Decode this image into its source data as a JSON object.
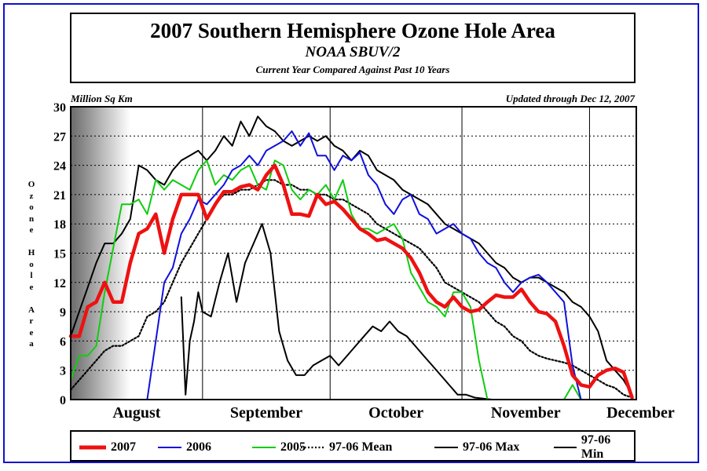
{
  "header": {
    "title": "2007 Southern Hemisphere Ozone Hole Area",
    "subtitle": "NOAA SBUV/2",
    "subtitle2": "Current Year Compared Against Past 10 Years"
  },
  "chart_data": {
    "type": "line",
    "ylabel": "Ozone Hole Area",
    "yunit": "Million Sq Km",
    "updated": "Updated through Dec 12, 2007",
    "ylim": [
      0,
      30
    ],
    "yticks": [
      "0",
      "3",
      "6",
      "9",
      "12",
      "15",
      "18",
      "21",
      "24",
      "27",
      "30"
    ],
    "months": [
      "August",
      "September",
      "October",
      "November",
      "December"
    ],
    "xlim": [
      "Aug 1",
      "Dec 12"
    ],
    "grid": "horizontal dotted; vertical solid at month starts",
    "shaded_region": "early August (polar night, gray gradient)",
    "legend_position": "bottom",
    "colors": {
      "2007": "#ee1111",
      "2006": "#1010dd",
      "2005": "#11cc11",
      "mean": "#000000",
      "max": "#000000",
      "min": "#000000"
    },
    "series": [
      {
        "name": "2007",
        "style": "thick",
        "color": "#ee1111",
        "x": [
          "Aug 1",
          "Aug 3",
          "Aug 5",
          "Aug 7",
          "Aug 9",
          "Aug 11",
          "Aug 13",
          "Aug 15",
          "Aug 17",
          "Aug 19",
          "Aug 21",
          "Aug 23",
          "Aug 25",
          "Aug 27",
          "Aug 29",
          "Aug 31",
          "Sep 2",
          "Sep 4",
          "Sep 6",
          "Sep 8",
          "Sep 10",
          "Sep 12",
          "Sep 14",
          "Sep 16",
          "Sep 18",
          "Sep 20",
          "Sep 22",
          "Sep 24",
          "Sep 26",
          "Sep 28",
          "Sep 30",
          "Oct 2",
          "Oct 4",
          "Oct 6",
          "Oct 8",
          "Oct 10",
          "Oct 12",
          "Oct 14",
          "Oct 16",
          "Oct 18",
          "Oct 20",
          "Oct 22",
          "Oct 24",
          "Oct 26",
          "Oct 28",
          "Oct 30",
          "Nov 1",
          "Nov 3",
          "Nov 5",
          "Nov 7",
          "Nov 9",
          "Nov 11",
          "Nov 13",
          "Nov 15",
          "Nov 17",
          "Nov 19",
          "Nov 21",
          "Nov 23",
          "Nov 25",
          "Nov 27",
          "Nov 29",
          "Dec 1",
          "Dec 3",
          "Dec 5",
          "Dec 7",
          "Dec 9",
          "Dec 11"
        ],
        "y": [
          6.5,
          6.5,
          9.5,
          10.0,
          12.0,
          10.0,
          10.0,
          14.0,
          17.0,
          17.5,
          19.0,
          15.0,
          18.5,
          21.0,
          21.0,
          21.0,
          18.5,
          20.0,
          21.3,
          21.3,
          21.8,
          22.0,
          21.5,
          23.0,
          24.0,
          22.0,
          19.0,
          19.0,
          18.8,
          21.0,
          20.0,
          20.3,
          19.5,
          18.5,
          17.5,
          17.0,
          16.3,
          16.5,
          16.0,
          15.5,
          14.5,
          13.0,
          11.0,
          10.0,
          9.5,
          10.5,
          9.5,
          9.0,
          9.2,
          10.0,
          10.7,
          10.5,
          10.5,
          11.3,
          10.0,
          9.0,
          8.8,
          8.0,
          5.5,
          2.5,
          1.5,
          1.3,
          2.5,
          3.0,
          3.2,
          2.8,
          0.2
        ]
      },
      {
        "name": "2006",
        "style": "thin",
        "color": "#1010dd",
        "x": [
          "Aug 19",
          "Aug 21",
          "Aug 23",
          "Aug 25",
          "Aug 27",
          "Aug 29",
          "Aug 31",
          "Sep 2",
          "Sep 4",
          "Sep 6",
          "Sep 8",
          "Sep 10",
          "Sep 12",
          "Sep 14",
          "Sep 16",
          "Sep 18",
          "Sep 20",
          "Sep 22",
          "Sep 24",
          "Sep 26",
          "Sep 28",
          "Sep 30",
          "Oct 2",
          "Oct 4",
          "Oct 6",
          "Oct 8",
          "Oct 10",
          "Oct 12",
          "Oct 14",
          "Oct 16",
          "Oct 18",
          "Oct 20",
          "Oct 22",
          "Oct 24",
          "Oct 26",
          "Oct 28",
          "Oct 30",
          "Nov 1",
          "Nov 3",
          "Nov 5",
          "Nov 7",
          "Nov 9",
          "Nov 11",
          "Nov 13",
          "Nov 15",
          "Nov 17",
          "Nov 19",
          "Nov 21",
          "Nov 23",
          "Nov 25",
          "Nov 27",
          "Nov 29"
        ],
        "y": [
          0,
          6.0,
          12.0,
          13.5,
          17.0,
          18.5,
          20.5,
          20.0,
          21.0,
          22.0,
          23.5,
          24.0,
          25.0,
          24.0,
          25.5,
          26.0,
          26.5,
          27.5,
          26.0,
          27.3,
          25.0,
          25.0,
          23.5,
          25.0,
          24.5,
          25.3,
          23.0,
          22.0,
          20.0,
          19.0,
          20.5,
          21.0,
          19.0,
          18.5,
          17.0,
          17.5,
          18.0,
          17.0,
          16.5,
          15.0,
          14.0,
          13.5,
          12.0,
          11.0,
          12.0,
          12.5,
          12.8,
          12.0,
          11.0,
          10.0,
          3.5,
          0
        ]
      },
      {
        "name": "2005",
        "style": "thin",
        "color": "#11cc11",
        "x": [
          "Aug 1",
          "Aug 3",
          "Aug 5",
          "Aug 7",
          "Aug 9",
          "Aug 11",
          "Aug 13",
          "Aug 15",
          "Aug 17",
          "Aug 19",
          "Aug 21",
          "Aug 23",
          "Aug 25",
          "Aug 27",
          "Aug 29",
          "Aug 31",
          "Sep 2",
          "Sep 4",
          "Sep 6",
          "Sep 8",
          "Sep 10",
          "Sep 12",
          "Sep 14",
          "Sep 16",
          "Sep 18",
          "Sep 20",
          "Sep 22",
          "Sep 24",
          "Sep 26",
          "Sep 28",
          "Sep 30",
          "Oct 2",
          "Oct 4",
          "Oct 6",
          "Oct 8",
          "Oct 10",
          "Oct 12",
          "Oct 14",
          "Oct 16",
          "Oct 18",
          "Oct 20",
          "Oct 22",
          "Oct 24",
          "Oct 26",
          "Oct 28",
          "Oct 30",
          "Nov 1",
          "Nov 3",
          "Nov 5",
          "Nov 7",
          "Nov 9",
          "Nov 11",
          "Nov 13",
          "Nov 15",
          "Nov 17",
          "Nov 19",
          "Nov 21",
          "Nov 23",
          "Nov 25",
          "Nov 27",
          "Nov 29",
          "Dec 1",
          "Dec 3"
        ],
        "y": [
          2.0,
          4.5,
          4.5,
          5.5,
          11.0,
          15.5,
          20.0,
          20.0,
          20.5,
          19.0,
          22.5,
          21.5,
          22.5,
          22.0,
          21.5,
          23.5,
          24.5,
          22.0,
          23.0,
          22.5,
          23.5,
          24.0,
          22.0,
          21.5,
          24.5,
          24.0,
          21.5,
          20.5,
          21.5,
          21.0,
          22.0,
          20.5,
          22.5,
          19.0,
          17.5,
          17.5,
          17.0,
          17.5,
          18.0,
          16.5,
          13.0,
          11.5,
          10.0,
          9.5,
          8.5,
          11.0,
          11.0,
          9.5,
          4.0,
          0,
          0,
          0,
          0,
          0,
          0,
          0,
          0,
          0,
          0,
          1.5,
          0,
          0,
          0
        ]
      },
      {
        "name": "97-06 Mean",
        "style": "dotted",
        "color": "#000000",
        "x": [
          "Aug 1",
          "Aug 3",
          "Aug 5",
          "Aug 7",
          "Aug 9",
          "Aug 11",
          "Aug 13",
          "Aug 15",
          "Aug 17",
          "Aug 19",
          "Aug 21",
          "Aug 23",
          "Aug 25",
          "Aug 27",
          "Aug 29",
          "Aug 31",
          "Sep 2",
          "Sep 4",
          "Sep 6",
          "Sep 8",
          "Sep 10",
          "Sep 12",
          "Sep 14",
          "Sep 16",
          "Sep 18",
          "Sep 20",
          "Sep 22",
          "Sep 24",
          "Sep 26",
          "Sep 28",
          "Sep 30",
          "Oct 2",
          "Oct 4",
          "Oct 6",
          "Oct 8",
          "Oct 10",
          "Oct 12",
          "Oct 14",
          "Oct 16",
          "Oct 18",
          "Oct 20",
          "Oct 22",
          "Oct 24",
          "Oct 26",
          "Oct 28",
          "Oct 30",
          "Nov 1",
          "Nov 3",
          "Nov 5",
          "Nov 7",
          "Nov 9",
          "Nov 11",
          "Nov 13",
          "Nov 15",
          "Nov 17",
          "Nov 19",
          "Nov 21",
          "Nov 23",
          "Nov 25",
          "Nov 27",
          "Nov 29",
          "Dec 1",
          "Dec 3",
          "Dec 5",
          "Dec 7",
          "Dec 9",
          "Dec 11"
        ],
        "y": [
          1.0,
          2.0,
          3.0,
          4.0,
          5.0,
          5.5,
          5.5,
          6.0,
          6.5,
          8.5,
          9.0,
          10.0,
          12.0,
          14.0,
          15.5,
          17.0,
          18.5,
          20.0,
          21.0,
          21.0,
          21.5,
          21.5,
          22.0,
          22.5,
          22.5,
          22.0,
          22.0,
          21.5,
          21.5,
          21.0,
          21.0,
          20.5,
          20.5,
          20.0,
          19.5,
          19.0,
          18.0,
          17.5,
          17.0,
          16.5,
          16.0,
          15.5,
          14.5,
          13.5,
          12.0,
          11.5,
          11.0,
          10.5,
          10.0,
          9.0,
          8.0,
          7.5,
          6.5,
          6.0,
          5.0,
          4.5,
          4.2,
          4.0,
          3.8,
          3.5,
          3.0,
          2.5,
          2.0,
          1.5,
          1.2,
          0.5,
          0.2
        ]
      },
      {
        "name": "97-06 Max",
        "style": "thin",
        "color": "#000000",
        "x": [
          "Aug 1",
          "Aug 3",
          "Aug 5",
          "Aug 7",
          "Aug 9",
          "Aug 11",
          "Aug 13",
          "Aug 15",
          "Aug 17",
          "Aug 19",
          "Aug 21",
          "Aug 23",
          "Aug 25",
          "Aug 27",
          "Aug 29",
          "Aug 31",
          "Sep 2",
          "Sep 4",
          "Sep 6",
          "Sep 8",
          "Sep 10",
          "Sep 12",
          "Sep 14",
          "Sep 16",
          "Sep 18",
          "Sep 20",
          "Sep 22",
          "Sep 24",
          "Sep 26",
          "Sep 28",
          "Sep 30",
          "Oct 2",
          "Oct 4",
          "Oct 6",
          "Oct 8",
          "Oct 10",
          "Oct 12",
          "Oct 14",
          "Oct 16",
          "Oct 18",
          "Oct 20",
          "Oct 22",
          "Oct 24",
          "Oct 26",
          "Oct 28",
          "Oct 30",
          "Nov 1",
          "Nov 3",
          "Nov 5",
          "Nov 7",
          "Nov 9",
          "Nov 11",
          "Nov 13",
          "Nov 15",
          "Nov 17",
          "Nov 19",
          "Nov 21",
          "Nov 23",
          "Nov 25",
          "Nov 27",
          "Nov 29",
          "Dec 1",
          "Dec 3",
          "Dec 5",
          "Dec 7",
          "Dec 9",
          "Dec 11"
        ],
        "y": [
          6.5,
          9.0,
          11.5,
          14.0,
          16.0,
          16.0,
          17.0,
          18.5,
          24.0,
          23.5,
          22.5,
          22.0,
          23.5,
          24.5,
          25.0,
          25.5,
          24.5,
          25.5,
          27.0,
          26.0,
          28.5,
          27.0,
          29.0,
          28.0,
          27.5,
          26.5,
          26.0,
          26.5,
          27.0,
          26.5,
          27.0,
          26.0,
          25.5,
          24.5,
          25.5,
          25.0,
          23.5,
          23.0,
          22.5,
          21.5,
          21.0,
          20.5,
          20.0,
          19.0,
          18.0,
          17.5,
          17.0,
          16.5,
          16.0,
          15.0,
          14.0,
          13.5,
          12.5,
          12.0,
          12.5,
          12.5,
          12.0,
          11.5,
          11.0,
          10.0,
          9.5,
          8.5,
          7.0,
          4.0,
          3.0,
          2.0,
          0.5
        ]
      },
      {
        "name": "97-06 Min",
        "style": "thin",
        "color": "#000000",
        "x": [
          "Aug 27",
          "Aug 28",
          "Aug 29",
          "Aug 30",
          "Aug 31",
          "Sep 1",
          "Sep 3",
          "Sep 5",
          "Sep 7",
          "Sep 9",
          "Sep 11",
          "Sep 13",
          "Sep 15",
          "Sep 17",
          "Sep 19",
          "Sep 21",
          "Sep 23",
          "Sep 25",
          "Sep 27",
          "Sep 29",
          "Oct 1",
          "Oct 3",
          "Oct 5",
          "Oct 7",
          "Oct 9",
          "Oct 11",
          "Oct 13",
          "Oct 15",
          "Oct 17",
          "Oct 19",
          "Oct 21",
          "Oct 23",
          "Oct 25",
          "Oct 27",
          "Oct 29",
          "Oct 31",
          "Nov 2",
          "Nov 4",
          "Nov 6",
          "Nov 8"
        ],
        "y": [
          10.5,
          0.5,
          6.0,
          8.0,
          11.0,
          9.0,
          8.5,
          12.0,
          15.0,
          10.0,
          14.0,
          16.0,
          18.0,
          15.0,
          7.0,
          4.0,
          2.5,
          2.5,
          3.5,
          4.0,
          4.5,
          3.5,
          4.5,
          5.5,
          6.5,
          7.5,
          7.0,
          8.0,
          7.0,
          6.5,
          5.5,
          4.5,
          3.5,
          2.5,
          1.5,
          0.5,
          0.5,
          0.2,
          0.1,
          0
        ]
      }
    ]
  }
}
